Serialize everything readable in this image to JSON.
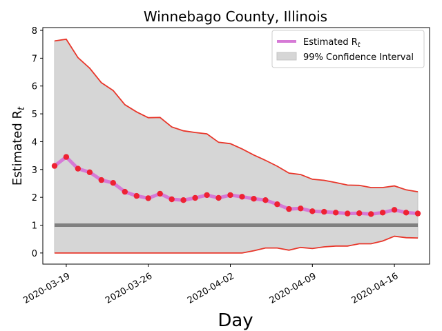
{
  "chart_data": {
    "type": "line",
    "title": "Winnebago County, Illinois",
    "xlabel": "Day",
    "ylabel": "Estimated R",
    "ylabel_sub": "t",
    "x_start": "2020-03-18",
    "x_end": "2020-04-18",
    "xlim": [
      "2020-03-17",
      "2020-04-19"
    ],
    "ylim": [
      -0.4,
      8.1
    ],
    "x_ticks": [
      "2020-03-19",
      "2020-03-26",
      "2020-04-02",
      "2020-04-09",
      "2020-04-16"
    ],
    "y_ticks": [
      0,
      1,
      2,
      3,
      4,
      5,
      6,
      7,
      8
    ],
    "reference_line": 1,
    "series": [
      {
        "name": "Estimated R",
        "name_sub": "t",
        "values": [
          3.13,
          3.45,
          3.03,
          2.9,
          2.62,
          2.52,
          2.2,
          2.05,
          1.97,
          2.13,
          1.93,
          1.9,
          1.98,
          2.08,
          1.98,
          2.08,
          2.02,
          1.95,
          1.9,
          1.75,
          1.58,
          1.6,
          1.5,
          1.48,
          1.45,
          1.42,
          1.43,
          1.4,
          1.45,
          1.55,
          1.45,
          1.42
        ]
      },
      {
        "name": "99% Confidence Interval",
        "upper": [
          7.62,
          7.68,
          7.02,
          6.64,
          6.12,
          5.84,
          5.33,
          5.07,
          4.86,
          4.87,
          4.53,
          4.39,
          4.33,
          4.28,
          3.98,
          3.93,
          3.74,
          3.52,
          3.33,
          3.12,
          2.87,
          2.82,
          2.65,
          2.61,
          2.53,
          2.44,
          2.43,
          2.35,
          2.35,
          2.41,
          2.27,
          2.2
        ],
        "lower": [
          0,
          0,
          0,
          0,
          0,
          0,
          0,
          0,
          0,
          0,
          0,
          0,
          0,
          0,
          0,
          0,
          0,
          0.08,
          0.18,
          0.18,
          0.1,
          0.2,
          0.16,
          0.22,
          0.25,
          0.25,
          0.33,
          0.33,
          0.43,
          0.6,
          0.55,
          0.54
        ]
      }
    ],
    "colors": {
      "estimate_line": "#d67ad6",
      "estimate_point": "#ee2233",
      "band_fill": "#d6d6d6",
      "band_edge": "#e8362a",
      "reference": "#808080"
    },
    "legend": {
      "placement": "upper-right"
    }
  }
}
